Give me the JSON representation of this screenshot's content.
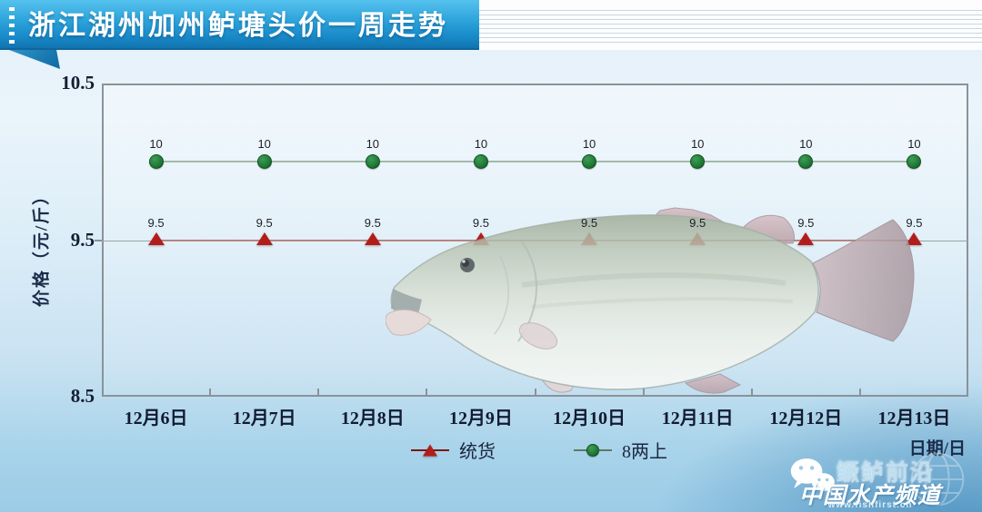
{
  "banner": {
    "title": "浙江湖州加州鲈塘头价一周走势"
  },
  "chart_data": {
    "type": "line",
    "categories": [
      "12月6日",
      "12月7日",
      "12月8日",
      "12月9日",
      "12月10日",
      "12月11日",
      "12月12日",
      "12月13日"
    ],
    "series": [
      {
        "name": "统货",
        "marker": "triangle",
        "color": "#b21d1a",
        "line_color": "#7e1612",
        "values": [
          9.5,
          9.5,
          9.5,
          9.5,
          9.5,
          9.5,
          9.5,
          9.5
        ]
      },
      {
        "name": "8两上",
        "marker": "circle",
        "color": "#1e7a35",
        "line_color": "#5a7d62",
        "values": [
          10,
          10,
          10,
          10,
          10,
          10,
          10,
          10
        ]
      }
    ],
    "ylabel": "价格（元/斤）",
    "xlabel": "日期/日",
    "ylim": [
      8.5,
      10.5
    ],
    "yticks": [
      8.5,
      9.5,
      10.5
    ],
    "grid": "horizontal-at-9.5",
    "legend_position": "bottom-center"
  },
  "watermark": {
    "brand": "鳜鲈前沿",
    "channel": "中国水产频道",
    "url": "www.fishfirst.cn"
  },
  "colors": {
    "banner_top": "#55c2ee",
    "banner_bottom": "#1173ae",
    "background_bottom": "#9ccce7",
    "axis_text": "#141d33"
  }
}
